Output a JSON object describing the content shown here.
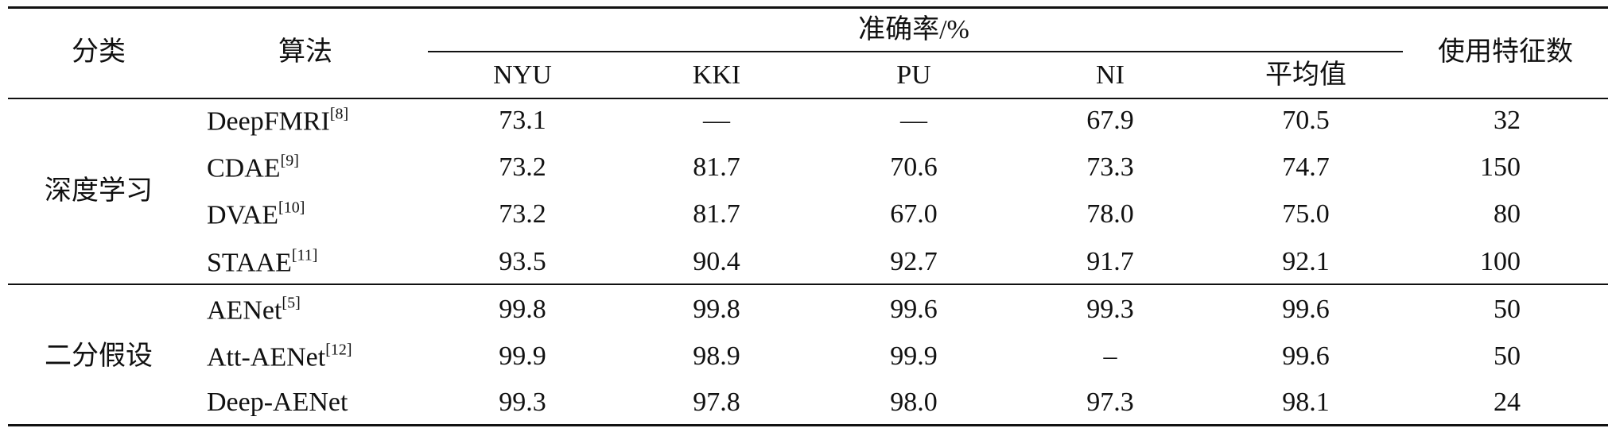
{
  "header": {
    "category": "分类",
    "algorithm": "算法",
    "accuracy": "准确率/%",
    "columns": [
      "NYU",
      "KKI",
      "PU",
      "NI",
      "平均值"
    ],
    "features": "使用特征数"
  },
  "groups": [
    {
      "name": "深度学习",
      "rows": [
        {
          "algorithm": "DeepFMRI",
          "ref": "[8]",
          "values": [
            "73.1",
            "—",
            "—",
            "67.9",
            "70.5"
          ],
          "features": 32
        },
        {
          "algorithm": "CDAE",
          "ref": "[9]",
          "values": [
            "73.2",
            "81.7",
            "70.6",
            "73.3",
            "74.7"
          ],
          "features": 150
        },
        {
          "algorithm": "DVAE",
          "ref": "[10]",
          "values": [
            "73.2",
            "81.7",
            "67.0",
            "78.0",
            "75.0"
          ],
          "features": 80
        },
        {
          "algorithm": "STAAE",
          "ref": "[11]",
          "values": [
            "93.5",
            "90.4",
            "92.7",
            "91.7",
            "92.1"
          ],
          "features": 100
        }
      ]
    },
    {
      "name": "二分假设",
      "rows": [
        {
          "algorithm": "AENet",
          "ref": "[5]",
          "values": [
            "99.8",
            "99.8",
            "99.6",
            "99.3",
            "99.6"
          ],
          "features": 50
        },
        {
          "algorithm": "Att-AENet",
          "ref": "[12]",
          "values": [
            "99.9",
            "98.9",
            "99.9",
            "–",
            "99.6"
          ],
          "features": 50
        },
        {
          "algorithm": "Deep-AENet",
          "values": [
            "99.3",
            "97.8",
            "98.0",
            "97.3",
            "98.1"
          ],
          "features": 24
        }
      ]
    }
  ]
}
